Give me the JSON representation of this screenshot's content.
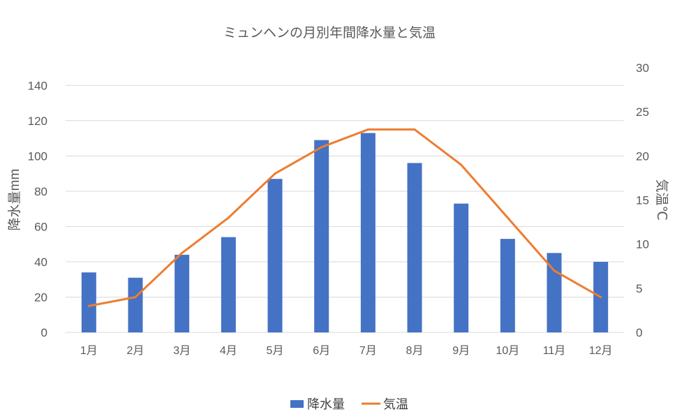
{
  "chart_data": {
    "type": "bar",
    "title": "ミュンヘンの月別年間降水量と気温",
    "categories": [
      "1月",
      "2月",
      "3月",
      "4月",
      "5月",
      "6月",
      "7月",
      "8月",
      "9月",
      "10月",
      "11月",
      "12月"
    ],
    "series": [
      {
        "name": "降水量",
        "type": "bar",
        "axis": "left",
        "color": "#4472C4",
        "values": [
          34,
          31,
          44,
          54,
          87,
          109,
          113,
          96,
          73,
          53,
          45,
          40
        ]
      },
      {
        "name": "気温",
        "type": "line",
        "axis": "right",
        "color": "#ED7D31",
        "values": [
          3,
          4,
          9,
          13,
          18,
          21,
          23,
          23,
          19,
          13,
          7,
          4
        ]
      }
    ],
    "xlabel": "",
    "ylabel": "降水量mm",
    "y2label": "気温℃",
    "ylim": [
      0,
      150
    ],
    "yticks": [
      0,
      20,
      40,
      60,
      80,
      100,
      120,
      140
    ],
    "y2lim": [
      0,
      30
    ],
    "y2ticks": [
      0,
      5,
      10,
      15,
      20,
      25,
      30
    ],
    "grid": true,
    "legend": "bottom-center"
  }
}
